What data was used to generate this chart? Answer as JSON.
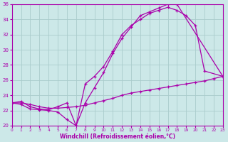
{
  "xlabel": "Windchill (Refroidissement éolien,°C)",
  "background_color": "#cce8e8",
  "line_color": "#aa00aa",
  "grid_color": "#aacccc",
  "xlim": [
    0,
    23
  ],
  "ylim": [
    20,
    36
  ],
  "xticks": [
    0,
    1,
    2,
    3,
    4,
    5,
    6,
    7,
    8,
    9,
    10,
    11,
    12,
    13,
    14,
    15,
    16,
    17,
    18,
    19,
    20,
    21,
    22,
    23
  ],
  "yticks": [
    20,
    22,
    24,
    26,
    28,
    30,
    32,
    34,
    36
  ],
  "series1_x": [
    0,
    1,
    2,
    3,
    4,
    5,
    6,
    7,
    8,
    9,
    10,
    11,
    12,
    13,
    14,
    15,
    16,
    17,
    18,
    23
  ],
  "series1_y": [
    23.0,
    22.8,
    22.2,
    22.1,
    22.0,
    21.8,
    20.8,
    20.0,
    23.0,
    25.0,
    27.0,
    29.5,
    31.5,
    33.0,
    34.5,
    35.0,
    35.5,
    36.0,
    36.0,
    26.5
  ],
  "series2_x": [
    0,
    1,
    2,
    3,
    4,
    5,
    6,
    7,
    8,
    9,
    10,
    11,
    12,
    13,
    14,
    15,
    16,
    17,
    18,
    19,
    20,
    21,
    22,
    23
  ],
  "series2_y": [
    23.0,
    23.0,
    22.8,
    22.5,
    22.3,
    22.3,
    22.4,
    22.5,
    22.7,
    23.0,
    23.3,
    23.6,
    24.0,
    24.3,
    24.5,
    24.7,
    24.9,
    25.1,
    25.3,
    25.5,
    25.7,
    25.9,
    26.2,
    26.5
  ],
  "series3_x": [
    0,
    1,
    2,
    3,
    4,
    5,
    6,
    7,
    8,
    9,
    10,
    11,
    12,
    13,
    14,
    15,
    16,
    17,
    18,
    19,
    20,
    21,
    23
  ],
  "series3_y": [
    23.0,
    23.2,
    22.5,
    22.2,
    22.1,
    22.5,
    23.0,
    20.0,
    25.5,
    26.5,
    27.8,
    29.8,
    32.0,
    33.2,
    34.0,
    34.8,
    35.2,
    35.6,
    35.2,
    34.5,
    33.2,
    27.2,
    26.5
  ]
}
